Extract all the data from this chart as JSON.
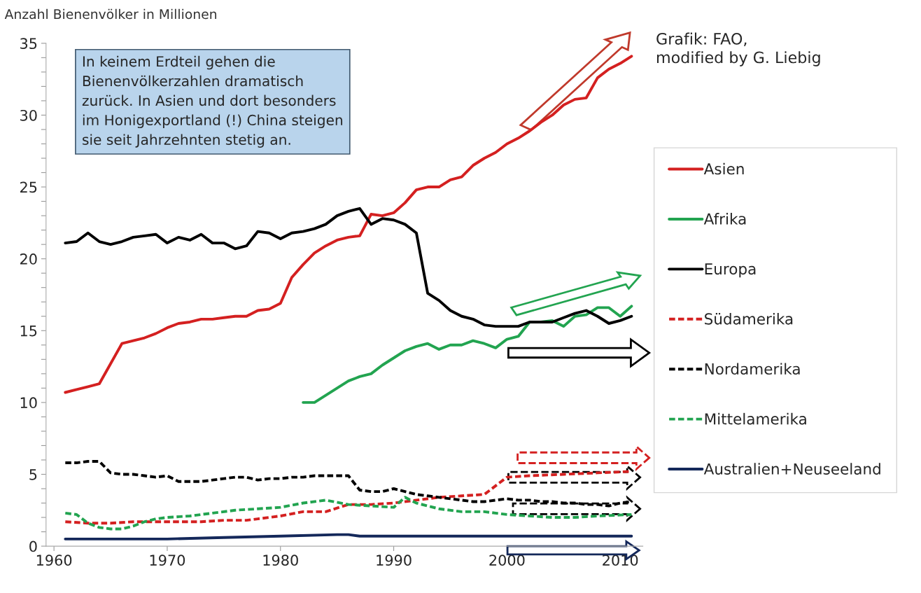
{
  "chart_data": {
    "type": "line",
    "ylabel": "Anzahl Bienenvölker in Millionen",
    "xlim": [
      1959.3,
      2012
    ],
    "xticks": [
      1960,
      1970,
      1980,
      1990,
      2000,
      2010
    ],
    "ylim": [
      0,
      35
    ],
    "yticks": [
      0,
      {
        "value": 1,
        "label": null
      },
      {
        "value": 2,
        "label": null
      },
      {
        "value": 3,
        "label": null
      },
      {
        "value": 4,
        "label": null
      },
      5,
      {
        "value": 6,
        "label": null
      },
      {
        "value": 7,
        "label": null
      },
      {
        "value": 8,
        "label": null
      },
      {
        "value": 9,
        "label": null
      },
      10,
      {
        "value": 11,
        "label": null
      },
      {
        "value": 12,
        "label": null
      },
      {
        "value": 13,
        "label": null
      },
      {
        "value": 14,
        "label": null
      },
      15,
      {
        "value": 16,
        "label": null
      },
      {
        "value": 17,
        "label": null
      },
      {
        "value": 18,
        "label": null
      },
      {
        "value": 19,
        "label": null
      },
      20,
      {
        "value": 21,
        "label": null
      },
      {
        "value": 22,
        "label": null
      },
      {
        "value": 23,
        "label": null
      },
      {
        "value": 24,
        "label": null
      },
      25,
      {
        "value": 26,
        "label": null
      },
      {
        "value": 27,
        "label": null
      },
      {
        "value": 28,
        "label": null
      },
      {
        "value": 29,
        "label": null
      },
      30,
      {
        "value": 31,
        "label": null
      },
      {
        "value": 32,
        "label": null
      },
      {
        "value": 33,
        "label": null
      },
      {
        "value": 34,
        "label": null
      },
      35
    ],
    "grid": false,
    "legend": "right",
    "annotations": [
      "In keinem Erdteil gehen die\nBienenvölkerzahlen dramatisch\nzurück. In Asien und dort besonders\nim Honigexportland (!) China steigen\nsie seit Jahrzehnten stetig an.",
      "Grafik: FAO,\nmodified by G. Liebig"
    ],
    "series": [
      {
        "name": "Asien",
        "color": "#d42020",
        "line_style": "solid",
        "x": [
          1961,
          1962,
          1963,
          1964,
          1965,
          1966,
          1967,
          1968,
          1969,
          1970,
          1971,
          1972,
          1973,
          1974,
          1975,
          1976,
          1977,
          1978,
          1979,
          1980,
          1981,
          1982,
          1983,
          1984,
          1985,
          1986,
          1987,
          1988,
          1989,
          1990,
          1991,
          1992,
          1993,
          1994,
          1995,
          1996,
          1997,
          1998,
          1999,
          2000,
          2001,
          2002,
          2003,
          2004,
          2005,
          2006,
          2007,
          2008,
          2009,
          2010,
          2011
        ],
        "values": [
          10.7,
          10.9,
          11.1,
          11.3,
          12.7,
          14.1,
          14.3,
          14.5,
          14.8,
          15.2,
          15.5,
          15.6,
          15.8,
          15.8,
          15.9,
          16.0,
          16.0,
          16.4,
          16.5,
          16.9,
          18.7,
          19.6,
          20.4,
          20.9,
          21.3,
          21.5,
          21.6,
          23.1,
          23.0,
          23.2,
          23.9,
          24.8,
          25.0,
          25.0,
          25.5,
          25.7,
          26.5,
          27.0,
          27.4,
          28.0,
          28.4,
          28.9,
          29.5,
          30.0,
          30.7,
          31.1,
          31.2,
          32.6,
          33.2,
          33.6,
          34.1
        ]
      },
      {
        "name": "Afrika",
        "color": "#22a450",
        "line_style": "solid",
        "x": [
          1982,
          1983,
          1984,
          1985,
          1986,
          1987,
          1988,
          1989,
          1990,
          1991,
          1992,
          1993,
          1994,
          1995,
          1996,
          1997,
          1998,
          1999,
          2000,
          2001,
          2002,
          2003,
          2004,
          2005,
          2006,
          2007,
          2008,
          2009,
          2010,
          2011
        ],
        "values": [
          10.0,
          10.0,
          10.5,
          11.0,
          11.5,
          11.8,
          12.0,
          12.6,
          13.1,
          13.6,
          13.9,
          14.1,
          13.7,
          14.0,
          14.0,
          14.3,
          14.1,
          13.8,
          14.4,
          14.6,
          15.6,
          15.6,
          15.7,
          15.3,
          16.0,
          16.1,
          16.6,
          16.6,
          16.0,
          16.7
        ]
      },
      {
        "name": "Europa",
        "color": "#000000",
        "line_style": "solid",
        "x": [
          1961,
          1962,
          1963,
          1964,
          1965,
          1966,
          1967,
          1968,
          1969,
          1970,
          1971,
          1972,
          1973,
          1974,
          1975,
          1976,
          1977,
          1978,
          1979,
          1980,
          1981,
          1982,
          1983,
          1984,
          1985,
          1986,
          1987,
          1988,
          1989,
          1990,
          1991,
          1992,
          1993,
          1994,
          1995,
          1996,
          1997,
          1998,
          1999,
          2000,
          2001,
          2002,
          2003,
          2004,
          2005,
          2006,
          2007,
          2008,
          2009,
          2010,
          2011
        ],
        "values": [
          21.1,
          21.2,
          21.8,
          21.2,
          21.0,
          21.2,
          21.5,
          21.6,
          21.7,
          21.1,
          21.5,
          21.3,
          21.7,
          21.1,
          21.1,
          20.7,
          20.9,
          21.9,
          21.8,
          21.4,
          21.8,
          21.9,
          22.1,
          22.4,
          23.0,
          23.3,
          23.5,
          22.4,
          22.8,
          22.7,
          22.4,
          21.8,
          17.6,
          17.1,
          16.4,
          16.0,
          15.8,
          15.4,
          15.3,
          15.3,
          15.3,
          15.6,
          15.6,
          15.6,
          15.9,
          16.2,
          16.4,
          16.0,
          15.5,
          15.7,
          16.0
        ]
      },
      {
        "name": "Südamerika",
        "color": "#d42020",
        "line_style": "dashed",
        "x": [
          1961,
          1963,
          1965,
          1967,
          1969,
          1971,
          1973,
          1975,
          1977,
          1978,
          1980,
          1982,
          1984,
          1986,
          1988,
          1990,
          1992,
          1994,
          1996,
          1998,
          1999,
          2000,
          2002,
          2005,
          2008,
          2011
        ],
        "values": [
          1.7,
          1.6,
          1.6,
          1.7,
          1.7,
          1.7,
          1.7,
          1.8,
          1.8,
          1.9,
          2.1,
          2.4,
          2.4,
          2.9,
          2.9,
          3.0,
          3.2,
          3.4,
          3.5,
          3.6,
          4.2,
          4.8,
          4.9,
          5.0,
          5.1,
          5.2
        ]
      },
      {
        "name": "Nordamerika",
        "color": "#000000",
        "line_style": "dashed",
        "x": [
          1961,
          1962,
          1963,
          1964,
          1965,
          1966,
          1967,
          1968,
          1969,
          1970,
          1971,
          1972,
          1973,
          1974,
          1975,
          1976,
          1977,
          1978,
          1979,
          1980,
          1981,
          1982,
          1983,
          1984,
          1985,
          1986,
          1987,
          1988,
          1989,
          1990,
          1991,
          1992,
          1993,
          1994,
          1995,
          1996,
          1997,
          1998,
          1999,
          2000,
          2001,
          2002,
          2003,
          2004,
          2005,
          2006,
          2007,
          2008,
          2009,
          2010,
          2011
        ],
        "values": [
          5.8,
          5.8,
          5.9,
          5.9,
          5.1,
          5.0,
          5.0,
          4.9,
          4.8,
          4.9,
          4.5,
          4.5,
          4.5,
          4.6,
          4.7,
          4.8,
          4.8,
          4.6,
          4.7,
          4.7,
          4.8,
          4.8,
          4.9,
          4.9,
          4.9,
          4.9,
          3.9,
          3.8,
          3.8,
          4.0,
          3.8,
          3.6,
          3.5,
          3.4,
          3.3,
          3.2,
          3.1,
          3.1,
          3.2,
          3.3,
          3.2,
          3.2,
          3.1,
          3.1,
          3.0,
          3.0,
          2.9,
          2.9,
          2.8,
          3.0,
          3.1
        ]
      },
      {
        "name": "Mittelamerika",
        "color": "#22a450",
        "line_style": "dashed",
        "x": [
          1961,
          1962,
          1963,
          1964,
          1965,
          1966,
          1967,
          1968,
          1969,
          1970,
          1972,
          1974,
          1976,
          1978,
          1980,
          1982,
          1984,
          1986,
          1988,
          1990,
          1991,
          1992,
          1994,
          1996,
          1998,
          2000,
          2002,
          2004,
          2006,
          2008,
          2011
        ],
        "values": [
          2.3,
          2.2,
          1.6,
          1.3,
          1.2,
          1.2,
          1.4,
          1.7,
          1.9,
          2.0,
          2.1,
          2.3,
          2.5,
          2.6,
          2.7,
          3.0,
          3.2,
          2.9,
          2.8,
          2.7,
          3.4,
          3.0,
          2.6,
          2.4,
          2.4,
          2.2,
          2.1,
          2.0,
          2.0,
          2.1,
          2.2
        ]
      },
      {
        "name": "Australien+Neuseeland",
        "color": "#14285a",
        "line_style": "solid",
        "x": [
          1961,
          1965,
          1970,
          1975,
          1980,
          1985,
          1986,
          1987,
          1990,
          1995,
          2000,
          2005,
          2011
        ],
        "values": [
          0.5,
          0.5,
          0.5,
          0.6,
          0.7,
          0.8,
          0.8,
          0.7,
          0.7,
          0.7,
          0.7,
          0.7,
          0.7
        ]
      }
    ]
  }
}
